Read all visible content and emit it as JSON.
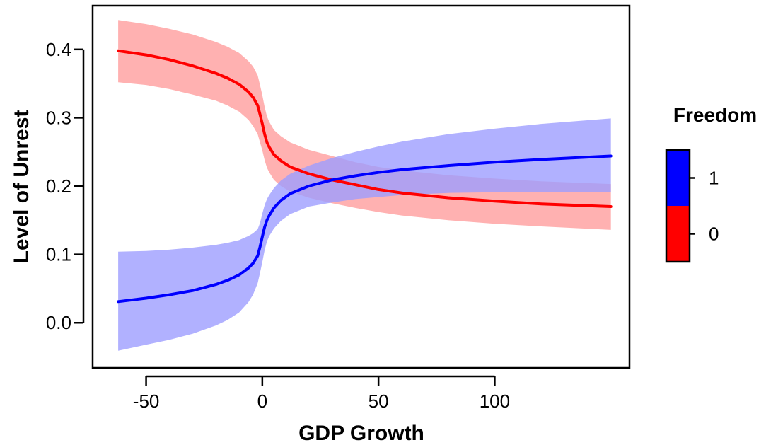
{
  "chart_data": {
    "type": "line",
    "xlabel": "GDP Growth",
    "ylabel": "Level of Unrest",
    "xlim": [
      -73,
      158
    ],
    "ylim": [
      -0.066,
      0.464
    ],
    "xticks": [
      -50,
      0,
      50,
      100
    ],
    "xtick_labels": [
      "-50",
      "0",
      "50",
      "100"
    ],
    "yticks": [
      0.0,
      0.1,
      0.2,
      0.3,
      0.4
    ],
    "ytick_labels": [
      "0.0",
      "0.1",
      "0.2",
      "0.3",
      "0.4"
    ],
    "grid": false,
    "legend": {
      "title": "Freedom",
      "placement": "right",
      "labels": [
        "1",
        "0"
      ],
      "colors": [
        "#0000ff",
        "#ff0000"
      ]
    },
    "series": [
      {
        "name": "0",
        "color": "#ff0000",
        "band_color": "#ff9e9e",
        "x": [
          -62,
          -50,
          -40,
          -30,
          -20,
          -15,
          -10,
          -6,
          -4,
          -2,
          -1,
          0,
          1,
          2,
          3,
          5,
          8,
          12,
          20,
          30,
          40,
          50,
          60,
          80,
          100,
          120,
          150
        ],
        "y": [
          0.398,
          0.392,
          0.385,
          0.376,
          0.365,
          0.358,
          0.349,
          0.338,
          0.33,
          0.318,
          0.305,
          0.291,
          0.276,
          0.264,
          0.257,
          0.246,
          0.237,
          0.228,
          0.218,
          0.209,
          0.202,
          0.195,
          0.19,
          0.183,
          0.178,
          0.174,
          0.17
        ],
        "lower": [
          0.352,
          0.348,
          0.342,
          0.334,
          0.325,
          0.318,
          0.309,
          0.297,
          0.288,
          0.276,
          0.264,
          0.252,
          0.238,
          0.227,
          0.22,
          0.209,
          0.2,
          0.192,
          0.183,
          0.175,
          0.168,
          0.162,
          0.157,
          0.15,
          0.145,
          0.141,
          0.136
        ],
        "upper": [
          0.443,
          0.437,
          0.43,
          0.422,
          0.411,
          0.404,
          0.395,
          0.383,
          0.375,
          0.362,
          0.348,
          0.333,
          0.316,
          0.302,
          0.294,
          0.282,
          0.273,
          0.264,
          0.253,
          0.244,
          0.235,
          0.228,
          0.223,
          0.216,
          0.211,
          0.207,
          0.203
        ]
      },
      {
        "name": "1",
        "color": "#0000ff",
        "band_color": "#9e9eff",
        "x": [
          -62,
          -50,
          -40,
          -30,
          -20,
          -15,
          -10,
          -6,
          -4,
          -2,
          -1,
          0,
          1,
          2,
          3,
          5,
          8,
          12,
          20,
          30,
          40,
          50,
          60,
          80,
          100,
          120,
          150
        ],
        "y": [
          0.031,
          0.036,
          0.041,
          0.047,
          0.056,
          0.062,
          0.07,
          0.08,
          0.087,
          0.098,
          0.111,
          0.126,
          0.14,
          0.15,
          0.157,
          0.168,
          0.179,
          0.189,
          0.2,
          0.209,
          0.215,
          0.22,
          0.224,
          0.23,
          0.235,
          0.239,
          0.244
        ],
        "lower": [
          -0.041,
          -0.032,
          -0.025,
          -0.016,
          -0.004,
          0.004,
          0.015,
          0.03,
          0.041,
          0.058,
          0.073,
          0.089,
          0.106,
          0.119,
          0.127,
          0.138,
          0.149,
          0.159,
          0.17,
          0.176,
          0.181,
          0.184,
          0.187,
          0.19,
          0.191,
          0.191,
          0.191
        ],
        "upper": [
          0.104,
          0.105,
          0.107,
          0.11,
          0.114,
          0.117,
          0.121,
          0.127,
          0.131,
          0.137,
          0.146,
          0.16,
          0.172,
          0.181,
          0.187,
          0.197,
          0.208,
          0.218,
          0.23,
          0.241,
          0.25,
          0.258,
          0.265,
          0.276,
          0.284,
          0.291,
          0.299
        ]
      }
    ]
  }
}
